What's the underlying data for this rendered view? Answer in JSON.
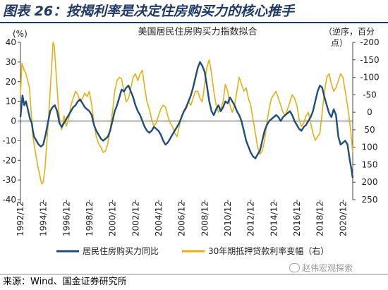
{
  "figure": {
    "title": "图表 26：按揭利率是决定住房购买力的核心推手",
    "source": "来源：Wind、国金证券研究所",
    "watermark": "赵伟宏观探索"
  },
  "chart_data": {
    "type": "line",
    "title": "美国居民住房购买力指数拟合",
    "left_axis": {
      "unit": "(%)",
      "ticks": [
        -40,
        -30,
        -20,
        -10,
        0,
        10,
        20,
        30,
        40
      ],
      "range": [
        -40,
        40
      ]
    },
    "right_axis": {
      "label": "（逆序，百分点）",
      "ticks": [
        250,
        200,
        150,
        100,
        50,
        0,
        -50,
        -100,
        -150,
        -200
      ],
      "tick_labels": [
        "250",
        "200",
        "150",
        "100",
        "50",
        "0",
        "-50",
        "-100",
        "-150",
        "-200"
      ],
      "range": [
        250,
        -200
      ],
      "inverted": true
    },
    "x_ticks": [
      "1992/12",
      "1994/12",
      "1996/12",
      "1998/12",
      "2000/12",
      "2002/12",
      "2004/12",
      "2006/12",
      "2008/12",
      "2010/12",
      "2012/12",
      "2014/12",
      "2016/12",
      "2018/12",
      "2020/12"
    ],
    "x_range": [
      1992.92,
      2021.75
    ],
    "grid": false,
    "legend_position": "bottom",
    "colors": {
      "series1": "#1f4e79",
      "series2": "#e6b012"
    },
    "series": [
      {
        "name": "居民住房购买力同比",
        "axis": "left",
        "points": [
          [
            1992.92,
            2
          ],
          [
            1993.1,
            13
          ],
          [
            1993.25,
            8
          ],
          [
            1993.4,
            10
          ],
          [
            1993.6,
            5
          ],
          [
            1993.75,
            1
          ],
          [
            1993.9,
            -1
          ],
          [
            1994.0,
            -5
          ],
          [
            1994.1,
            -8
          ],
          [
            1994.3,
            -10
          ],
          [
            1994.5,
            -12
          ],
          [
            1994.7,
            -13
          ],
          [
            1994.9,
            -12
          ],
          [
            1995.1,
            -7
          ],
          [
            1995.3,
            -1
          ],
          [
            1995.5,
            5
          ],
          [
            1995.7,
            7
          ],
          [
            1995.9,
            8
          ],
          [
            1996.1,
            5
          ],
          [
            1996.3,
            -1
          ],
          [
            1996.5,
            -3
          ],
          [
            1996.7,
            -1
          ],
          [
            1996.9,
            1
          ],
          [
            1997.1,
            3
          ],
          [
            1997.3,
            5
          ],
          [
            1997.5,
            7
          ],
          [
            1997.7,
            8
          ],
          [
            1997.9,
            10
          ],
          [
            1998.1,
            11
          ],
          [
            1998.3,
            9
          ],
          [
            1998.5,
            7
          ],
          [
            1998.7,
            6
          ],
          [
            1998.9,
            5
          ],
          [
            1999.1,
            3
          ],
          [
            1999.3,
            -2
          ],
          [
            1999.5,
            -5
          ],
          [
            1999.7,
            -7
          ],
          [
            1999.9,
            -9
          ],
          [
            2000.1,
            -10
          ],
          [
            2000.3,
            -9
          ],
          [
            2000.5,
            -8
          ],
          [
            2000.7,
            -5
          ],
          [
            2000.9,
            0
          ],
          [
            2001.1,
            5
          ],
          [
            2001.3,
            8
          ],
          [
            2001.5,
            12
          ],
          [
            2001.7,
            16
          ],
          [
            2001.9,
            15
          ],
          [
            2002.1,
            17
          ],
          [
            2002.3,
            18
          ],
          [
            2002.5,
            15
          ],
          [
            2002.7,
            12
          ],
          [
            2002.9,
            8
          ],
          [
            2003.1,
            5
          ],
          [
            2003.3,
            3
          ],
          [
            2003.5,
            0
          ],
          [
            2003.7,
            -3
          ],
          [
            2003.9,
            -5
          ],
          [
            2004.1,
            -6
          ],
          [
            2004.3,
            -5
          ],
          [
            2004.5,
            -3
          ],
          [
            2004.7,
            -4
          ],
          [
            2004.9,
            -5
          ],
          [
            2005.1,
            -7
          ],
          [
            2005.3,
            -10
          ],
          [
            2005.5,
            -12
          ],
          [
            2005.7,
            -11
          ],
          [
            2005.9,
            -9
          ],
          [
            2006.1,
            -7
          ],
          [
            2006.3,
            -5
          ],
          [
            2006.5,
            -3
          ],
          [
            2006.7,
            -1
          ],
          [
            2006.9,
            2
          ],
          [
            2007.1,
            5
          ],
          [
            2007.3,
            7
          ],
          [
            2007.5,
            10
          ],
          [
            2007.7,
            13
          ],
          [
            2007.9,
            17
          ],
          [
            2008.1,
            22
          ],
          [
            2008.3,
            27
          ],
          [
            2008.5,
            30
          ],
          [
            2008.7,
            28
          ],
          [
            2008.9,
            25
          ],
          [
            2009.1,
            18
          ],
          [
            2009.3,
            10
          ],
          [
            2009.5,
            5
          ],
          [
            2009.7,
            3
          ],
          [
            2009.9,
            6
          ],
          [
            2010.1,
            8
          ],
          [
            2010.3,
            5
          ],
          [
            2010.5,
            7
          ],
          [
            2010.7,
            10
          ],
          [
            2010.9,
            9
          ],
          [
            2011.1,
            12
          ],
          [
            2011.3,
            10
          ],
          [
            2011.5,
            8
          ],
          [
            2011.7,
            5
          ],
          [
            2011.9,
            3
          ],
          [
            2012.1,
            0
          ],
          [
            2012.3,
            -5
          ],
          [
            2012.5,
            -10
          ],
          [
            2012.7,
            -13
          ],
          [
            2012.9,
            -16
          ],
          [
            2013.1,
            -18
          ],
          [
            2013.3,
            -19
          ],
          [
            2013.5,
            -17
          ],
          [
            2013.7,
            -15
          ],
          [
            2013.9,
            -10
          ],
          [
            2014.1,
            -5
          ],
          [
            2014.3,
            -2
          ],
          [
            2014.5,
            0
          ],
          [
            2014.7,
            1
          ],
          [
            2014.9,
            2
          ],
          [
            2015.1,
            3
          ],
          [
            2015.3,
            2
          ],
          [
            2015.5,
            0
          ],
          [
            2015.7,
            2
          ],
          [
            2015.9,
            3
          ],
          [
            2016.1,
            4
          ],
          [
            2016.3,
            5
          ],
          [
            2016.5,
            3
          ],
          [
            2016.7,
            0
          ],
          [
            2016.9,
            -2
          ],
          [
            2017.1,
            -4
          ],
          [
            2017.3,
            -5
          ],
          [
            2017.5,
            -3
          ],
          [
            2017.7,
            -2
          ],
          [
            2017.9,
            0
          ],
          [
            2018.1,
            2
          ],
          [
            2018.3,
            5
          ],
          [
            2018.5,
            10
          ],
          [
            2018.7,
            15
          ],
          [
            2018.9,
            18
          ],
          [
            2019.1,
            17
          ],
          [
            2019.3,
            12
          ],
          [
            2019.5,
            8
          ],
          [
            2019.7,
            4
          ],
          [
            2019.9,
            2
          ],
          [
            2020.1,
            6
          ],
          [
            2020.3,
            3
          ],
          [
            2020.5,
            -8
          ],
          [
            2020.7,
            -12
          ],
          [
            2020.9,
            -11
          ],
          [
            2021.1,
            -10
          ],
          [
            2021.3,
            -12
          ],
          [
            2021.5,
            -20
          ],
          [
            2021.65,
            -25
          ],
          [
            2021.75,
            -29
          ]
        ]
      },
      {
        "name": "30年期抵押贷款利率变幅（右）",
        "axis": "right",
        "points": [
          [
            1992.92,
            -50
          ],
          [
            1993.05,
            -140
          ],
          [
            1993.25,
            -120
          ],
          [
            1993.4,
            -110
          ],
          [
            1993.55,
            -90
          ],
          [
            1993.7,
            -70
          ],
          [
            1993.85,
            0
          ],
          [
            1994.0,
            70
          ],
          [
            1994.2,
            110
          ],
          [
            1994.4,
            150
          ],
          [
            1994.6,
            180
          ],
          [
            1994.75,
            205
          ],
          [
            1994.9,
            200
          ],
          [
            1995.05,
            160
          ],
          [
            1995.2,
            90
          ],
          [
            1995.35,
            20
          ],
          [
            1995.5,
            -60
          ],
          [
            1995.65,
            -140
          ],
          [
            1995.75,
            -200
          ],
          [
            1995.85,
            -190
          ],
          [
            1996.0,
            -120
          ],
          [
            1996.2,
            -20
          ],
          [
            1996.35,
            30
          ],
          [
            1996.5,
            50
          ],
          [
            1996.7,
            10
          ],
          [
            1996.9,
            40
          ],
          [
            1997.1,
            20
          ],
          [
            1997.3,
            -20
          ],
          [
            1997.5,
            -40
          ],
          [
            1997.7,
            -60
          ],
          [
            1997.9,
            -50
          ],
          [
            1998.1,
            -30
          ],
          [
            1998.3,
            -40
          ],
          [
            1998.5,
            -55
          ],
          [
            1998.7,
            -45
          ],
          [
            1998.9,
            -60
          ],
          [
            1999.1,
            -20
          ],
          [
            1999.3,
            30
          ],
          [
            1999.5,
            70
          ],
          [
            1999.7,
            90
          ],
          [
            1999.9,
            100
          ],
          [
            2000.1,
            115
          ],
          [
            2000.3,
            110
          ],
          [
            2000.5,
            90
          ],
          [
            2000.7,
            50
          ],
          [
            2000.9,
            0
          ],
          [
            2001.1,
            -60
          ],
          [
            2001.3,
            -90
          ],
          [
            2001.5,
            -100
          ],
          [
            2001.7,
            -95
          ],
          [
            2001.9,
            -60
          ],
          [
            2002.1,
            -30
          ],
          [
            2002.3,
            -40
          ],
          [
            2002.5,
            -70
          ],
          [
            2002.7,
            -100
          ],
          [
            2002.9,
            -110
          ],
          [
            2003.1,
            -90
          ],
          [
            2003.3,
            -110
          ],
          [
            2003.5,
            -120
          ],
          [
            2003.7,
            -70
          ],
          [
            2003.9,
            -30
          ],
          [
            2004.1,
            -10
          ],
          [
            2004.3,
            20
          ],
          [
            2004.5,
            40
          ],
          [
            2004.7,
            30
          ],
          [
            2004.9,
            10
          ],
          [
            2005.1,
            -10
          ],
          [
            2005.3,
            -20
          ],
          [
            2005.5,
            -15
          ],
          [
            2005.7,
            10
          ],
          [
            2005.9,
            30
          ],
          [
            2006.1,
            40
          ],
          [
            2006.3,
            60
          ],
          [
            2006.5,
            70
          ],
          [
            2006.7,
            40
          ],
          [
            2006.9,
            10
          ],
          [
            2007.1,
            0
          ],
          [
            2007.3,
            -10
          ],
          [
            2007.5,
            -30
          ],
          [
            2007.7,
            -20
          ],
          [
            2007.9,
            -40
          ],
          [
            2008.1,
            -60
          ],
          [
            2008.3,
            -60
          ],
          [
            2008.5,
            -40
          ],
          [
            2008.7,
            -30
          ],
          [
            2008.9,
            -80
          ],
          [
            2009.1,
            -130
          ],
          [
            2009.3,
            -150
          ],
          [
            2009.5,
            -110
          ],
          [
            2009.7,
            -60
          ],
          [
            2009.9,
            -20
          ],
          [
            2010.1,
            0
          ],
          [
            2010.3,
            -10
          ],
          [
            2010.5,
            -30
          ],
          [
            2010.7,
            -80
          ],
          [
            2010.9,
            -60
          ],
          [
            2011.1,
            -20
          ],
          [
            2011.3,
            0
          ],
          [
            2011.5,
            -20
          ],
          [
            2011.7,
            -60
          ],
          [
            2011.9,
            -100
          ],
          [
            2012.1,
            -80
          ],
          [
            2012.3,
            -60
          ],
          [
            2012.5,
            -70
          ],
          [
            2012.7,
            -40
          ],
          [
            2012.9,
            -20
          ],
          [
            2013.1,
            20
          ],
          [
            2013.3,
            60
          ],
          [
            2013.5,
            100
          ],
          [
            2013.7,
            120
          ],
          [
            2013.9,
            110
          ],
          [
            2014.1,
            80
          ],
          [
            2014.3,
            30
          ],
          [
            2014.5,
            -10
          ],
          [
            2014.7,
            -40
          ],
          [
            2014.9,
            -50
          ],
          [
            2015.1,
            -60
          ],
          [
            2015.3,
            -40
          ],
          [
            2015.5,
            -20
          ],
          [
            2015.7,
            0
          ],
          [
            2015.9,
            10
          ],
          [
            2016.1,
            -10
          ],
          [
            2016.3,
            -30
          ],
          [
            2016.5,
            -50
          ],
          [
            2016.7,
            -40
          ],
          [
            2016.9,
            -20
          ],
          [
            2017.1,
            20
          ],
          [
            2017.3,
            40
          ],
          [
            2017.5,
            30
          ],
          [
            2017.7,
            10
          ],
          [
            2017.9,
            0
          ],
          [
            2018.1,
            30
          ],
          [
            2018.3,
            60
          ],
          [
            2018.5,
            80
          ],
          [
            2018.7,
            70
          ],
          [
            2018.9,
            60
          ],
          [
            2019.1,
            0
          ],
          [
            2019.3,
            -60
          ],
          [
            2019.5,
            -100
          ],
          [
            2019.7,
            -110
          ],
          [
            2019.9,
            -80
          ],
          [
            2020.1,
            -60
          ],
          [
            2020.3,
            -70
          ],
          [
            2020.5,
            -90
          ],
          [
            2020.7,
            -110
          ],
          [
            2020.9,
            -100
          ],
          [
            2021.1,
            -60
          ],
          [
            2021.3,
            -20
          ],
          [
            2021.5,
            30
          ],
          [
            2021.65,
            80
          ],
          [
            2021.75,
            115
          ]
        ]
      }
    ]
  }
}
